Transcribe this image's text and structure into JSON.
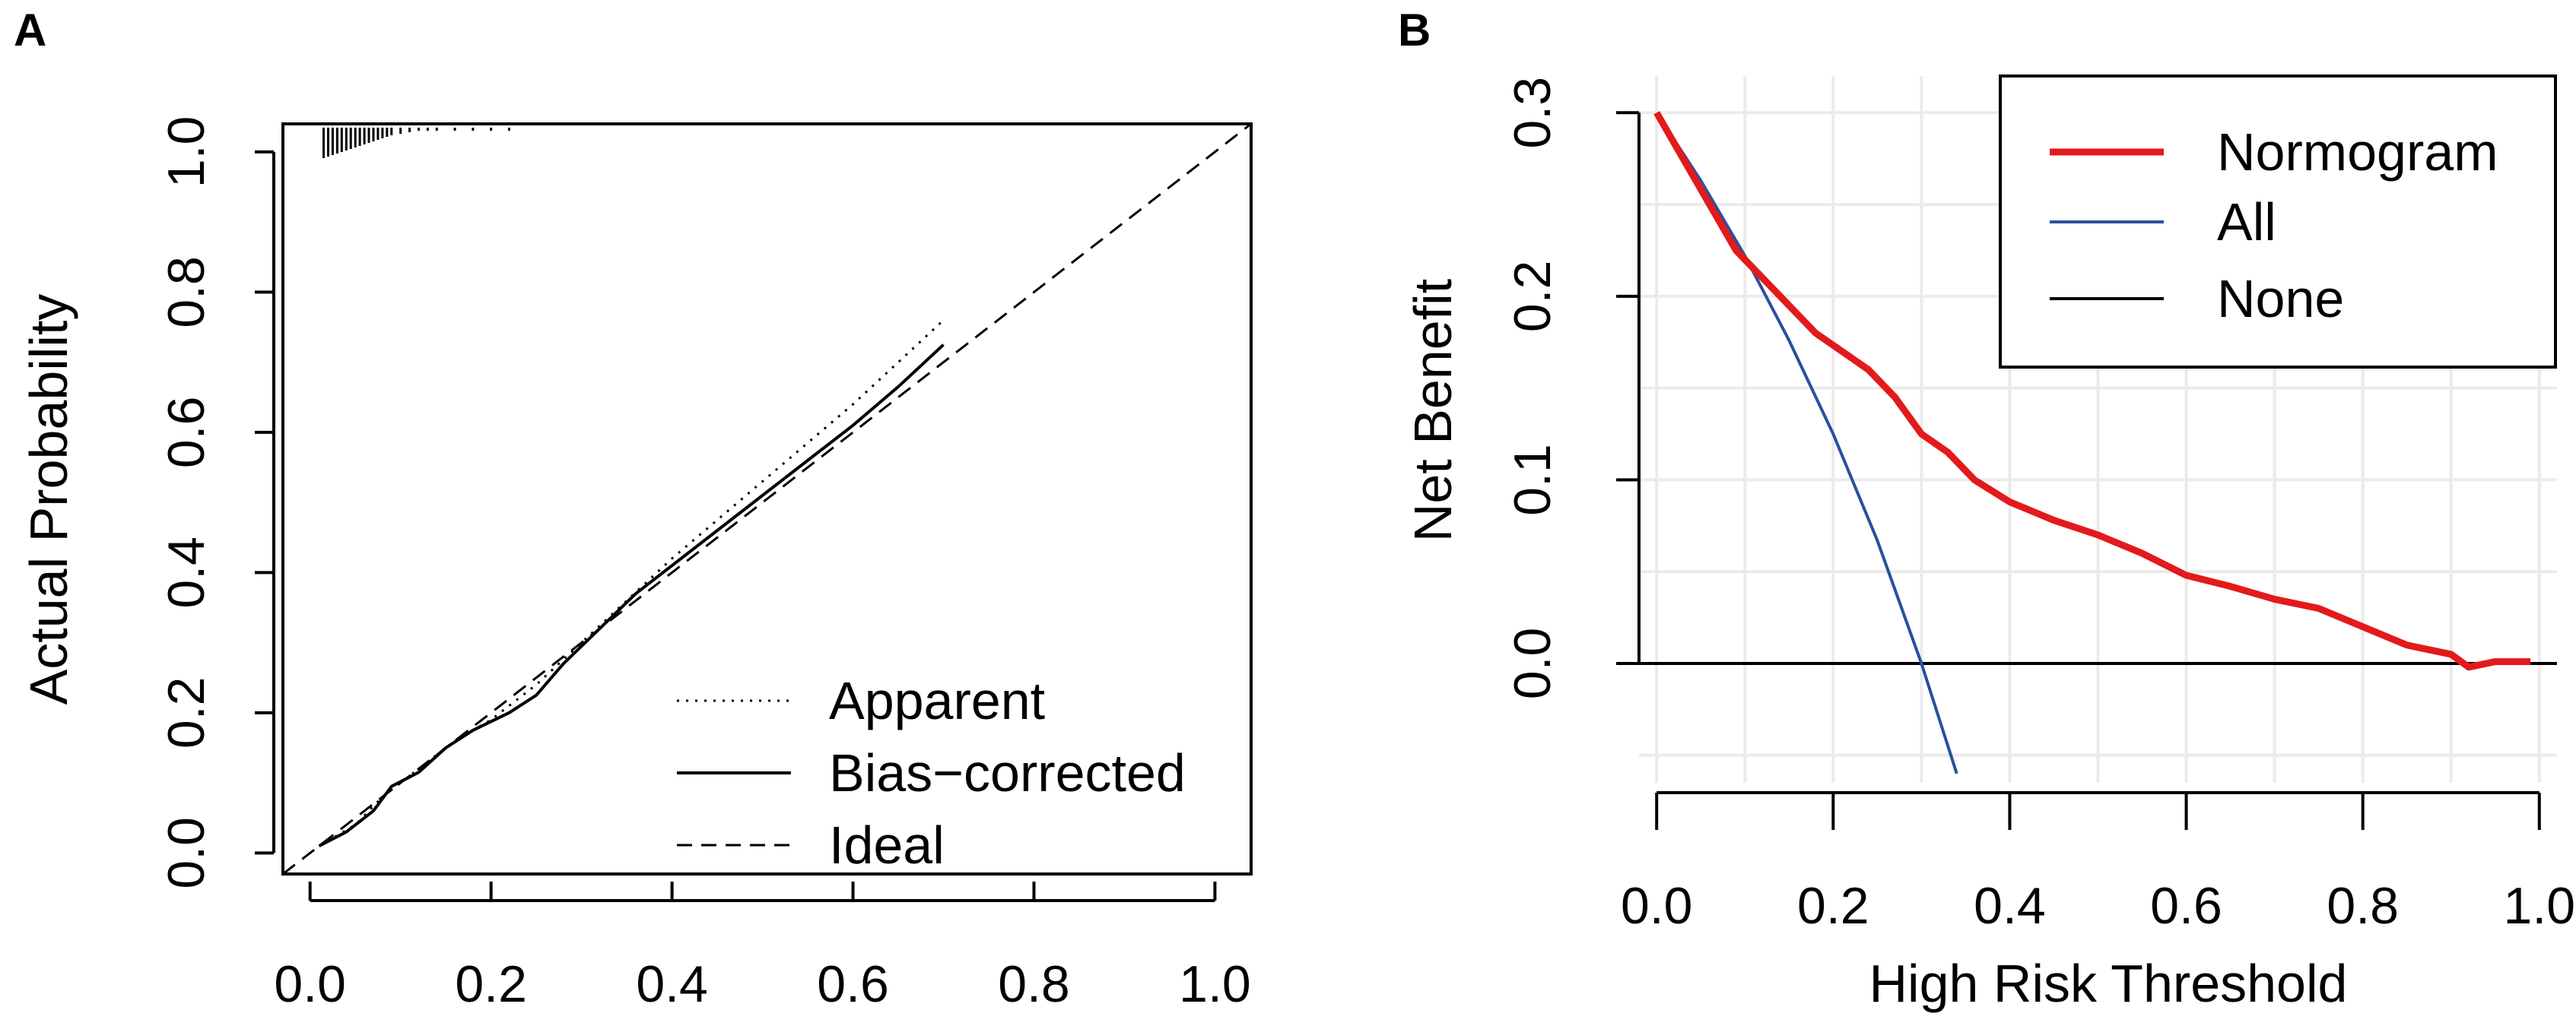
{
  "chart_data": [
    {
      "panel_label": "A",
      "type": "line",
      "xlabel": "",
      "ylabel": "Actual Probability",
      "xlim": [
        -0.03,
        1.04
      ],
      "ylim": [
        -0.03,
        1.04
      ],
      "x_ticks": [
        "0.0",
        "0.2",
        "0.4",
        "0.6",
        "0.8",
        "1.0"
      ],
      "y_ticks": [
        "0.0",
        "0.2",
        "0.4",
        "0.6",
        "0.8",
        "1.0"
      ],
      "rug_ticks": [
        0.015,
        0.02,
        0.025,
        0.03,
        0.035,
        0.04,
        0.045,
        0.05,
        0.055,
        0.06,
        0.065,
        0.07,
        0.075,
        0.08,
        0.085,
        0.09,
        0.1,
        0.11,
        0.12,
        0.13,
        0.14,
        0.16,
        0.18,
        0.2,
        0.22
      ],
      "legend": [
        "Apparent",
        "Bias−corrected",
        "Ideal"
      ],
      "series": [
        {
          "name": "Apparent",
          "style": "dotted",
          "x": [
            0.01,
            0.05,
            0.08,
            0.12,
            0.16,
            0.2,
            0.25,
            0.3,
            0.35,
            0.4,
            0.5,
            0.6,
            0.7
          ],
          "y": [
            0.01,
            0.04,
            0.08,
            0.12,
            0.16,
            0.19,
            0.24,
            0.3,
            0.36,
            0.42,
            0.53,
            0.64,
            0.76
          ]
        },
        {
          "name": "Bias−corrected",
          "style": "solid",
          "x": [
            0.01,
            0.04,
            0.07,
            0.09,
            0.12,
            0.15,
            0.18,
            0.22,
            0.25,
            0.28,
            0.32,
            0.36,
            0.4,
            0.45,
            0.5,
            0.55,
            0.6,
            0.65,
            0.7
          ],
          "y": [
            0.01,
            0.03,
            0.06,
            0.095,
            0.115,
            0.15,
            0.175,
            0.2,
            0.225,
            0.27,
            0.32,
            0.37,
            0.41,
            0.46,
            0.51,
            0.56,
            0.61,
            0.665,
            0.725
          ]
        },
        {
          "name": "Ideal",
          "style": "dashed",
          "x": [
            -0.03,
            1.04
          ],
          "y": [
            -0.03,
            1.04
          ]
        }
      ]
    },
    {
      "panel_label": "B",
      "type": "line",
      "xlabel": "High Risk Threshold",
      "ylabel": "Net Benefit",
      "xlim": [
        -0.02,
        1.02
      ],
      "ylim": [
        -0.065,
        0.32
      ],
      "x_ticks": [
        "0.0",
        "0.2",
        "0.4",
        "0.6",
        "0.8",
        "1.0"
      ],
      "y_ticks": [
        "0.0",
        "0.1",
        "0.2",
        "0.3"
      ],
      "legend": [
        "Normogram",
        "All",
        "None"
      ],
      "series": [
        {
          "name": "Normogram",
          "color": "#e31a1c",
          "x": [
            0.0,
            0.03,
            0.06,
            0.09,
            0.12,
            0.15,
            0.18,
            0.21,
            0.24,
            0.27,
            0.3,
            0.33,
            0.36,
            0.4,
            0.45,
            0.5,
            0.55,
            0.6,
            0.65,
            0.7,
            0.75,
            0.8,
            0.85,
            0.9,
            0.92,
            0.95,
            0.99
          ],
          "y": [
            0.3,
            0.275,
            0.25,
            0.225,
            0.21,
            0.195,
            0.18,
            0.17,
            0.16,
            0.145,
            0.125,
            0.115,
            0.1,
            0.088,
            0.078,
            0.07,
            0.06,
            0.048,
            0.042,
            0.035,
            0.03,
            0.02,
            0.01,
            0.005,
            -0.002,
            0.001,
            0.001
          ]
        },
        {
          "name": "All",
          "color": "#2a4f9e",
          "x": [
            0.0,
            0.05,
            0.1,
            0.15,
            0.2,
            0.25,
            0.3,
            0.34
          ],
          "y": [
            0.3,
            0.263,
            0.222,
            0.176,
            0.125,
            0.067,
            0.0,
            -0.06
          ]
        },
        {
          "name": "None",
          "color": "#000000",
          "x": [
            -0.02,
            1.02
          ],
          "y": [
            0.0,
            0.0
          ]
        }
      ]
    }
  ]
}
